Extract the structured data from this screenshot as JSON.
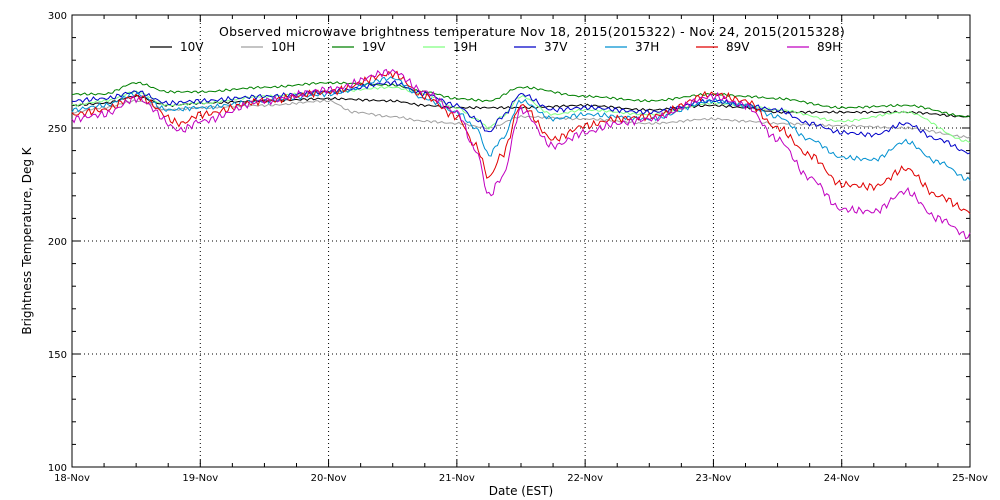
{
  "chart_data": {
    "type": "line",
    "title": "Observed microwave brightness temperature Nov 18, 2015(2015322) - Nov 24, 2015(2015328)",
    "xlabel": "Date (EST)",
    "ylabel": "Brightness Temperature, Deg K",
    "xlim": [
      0,
      7
    ],
    "ylim": [
      100,
      300
    ],
    "x_ticks": [
      {
        "x": 0,
        "label": "18-Nov"
      },
      {
        "x": 1,
        "label": "19-Nov"
      },
      {
        "x": 2,
        "label": "20-Nov"
      },
      {
        "x": 3,
        "label": "21-Nov"
      },
      {
        "x": 4,
        "label": "22-Nov"
      },
      {
        "x": 5,
        "label": "23-Nov"
      },
      {
        "x": 6,
        "label": "24-Nov"
      },
      {
        "x": 7,
        "label": "25-Nov"
      }
    ],
    "y_ticks": [
      100,
      150,
      200,
      250,
      300
    ],
    "grid": true,
    "grid_style": "dotted",
    "legend_position": "top",
    "series": [
      {
        "name": "10V",
        "color": "#000000",
        "x": [
          0,
          0.25,
          0.5,
          0.75,
          1,
          1.5,
          2,
          2.5,
          2.75,
          3,
          3.5,
          4,
          4.5,
          5,
          5.25,
          5.5,
          6,
          6.5,
          7
        ],
        "y": [
          260,
          261,
          264,
          260,
          261,
          262,
          263,
          262,
          260,
          259,
          259,
          260,
          258,
          260,
          259,
          257,
          257,
          257,
          255
        ]
      },
      {
        "name": "10H",
        "color": "#a0a0a0",
        "x": [
          0,
          0.25,
          0.5,
          0.75,
          1,
          1.5,
          2,
          2.2,
          2.5,
          2.75,
          3,
          3.25,
          3.5,
          4,
          4.5,
          5,
          5.25,
          5.5,
          6,
          6.5,
          7
        ],
        "y": [
          257,
          259,
          262,
          258,
          259,
          260,
          262,
          257,
          255,
          253,
          252,
          250,
          255,
          254,
          252,
          254,
          253,
          252,
          251,
          250,
          246
        ]
      },
      {
        "name": "19V",
        "color": "#008000",
        "x": [
          0,
          0.25,
          0.5,
          0.75,
          1,
          1.5,
          2,
          2.5,
          2.75,
          3,
          3.25,
          3.5,
          4,
          4.5,
          5,
          5.25,
          5.5,
          6,
          6.5,
          7
        ],
        "y": [
          265,
          265,
          270,
          266,
          266,
          268,
          270,
          269,
          266,
          263,
          262,
          268,
          264,
          262,
          265,
          264,
          263,
          259,
          260,
          255
        ]
      },
      {
        "name": "19H",
        "color": "#80ff80",
        "x": [
          0,
          0.25,
          0.5,
          0.75,
          1,
          1.5,
          2,
          2.5,
          2.75,
          3,
          3.15,
          3.25,
          3.35,
          3.5,
          3.75,
          4,
          4.5,
          5,
          5.25,
          5.5,
          6,
          6.5,
          7
        ],
        "y": [
          260,
          262,
          266,
          260,
          261,
          264,
          266,
          268,
          265,
          259,
          254,
          250,
          255,
          264,
          256,
          258,
          256,
          261,
          260,
          258,
          253,
          257,
          244
        ]
      },
      {
        "name": "37V",
        "color": "#0000c8",
        "x": [
          0,
          0.25,
          0.5,
          0.75,
          1,
          1.5,
          2,
          2.5,
          2.75,
          3,
          3.15,
          3.25,
          3.35,
          3.5,
          3.75,
          4,
          4.5,
          5,
          5.25,
          5.5,
          5.75,
          6,
          6.25,
          6.5,
          6.75,
          7
        ],
        "y": [
          262,
          263,
          266,
          261,
          262,
          264,
          266,
          270,
          265,
          260,
          254,
          248,
          255,
          265,
          258,
          259,
          257,
          262,
          260,
          258,
          252,
          248,
          247,
          252,
          245,
          239
        ]
      },
      {
        "name": "37H",
        "color": "#0090d0",
        "x": [
          0,
          0.25,
          0.5,
          0.75,
          1,
          1.5,
          2,
          2.5,
          2.75,
          3,
          3.15,
          3.25,
          3.35,
          3.5,
          3.75,
          4,
          4.5,
          5,
          5.25,
          5.5,
          5.75,
          6,
          6.25,
          6.5,
          6.75,
          7
        ],
        "y": [
          258,
          260,
          265,
          258,
          259,
          262,
          265,
          272,
          263,
          257,
          250,
          238,
          245,
          262,
          254,
          256,
          254,
          262,
          260,
          255,
          245,
          237,
          236,
          244,
          235,
          227
        ]
      },
      {
        "name": "89V",
        "color": "#e00000",
        "x": [
          0,
          0.25,
          0.5,
          0.85,
          1,
          1.5,
          2,
          2.5,
          2.75,
          3,
          3.15,
          3.25,
          3.35,
          3.5,
          3.75,
          4,
          4.25,
          4.5,
          5,
          5.25,
          5.5,
          5.75,
          6,
          6.25,
          6.5,
          6.75,
          7
        ],
        "y": [
          256,
          258,
          264,
          252,
          256,
          262,
          266,
          274,
          264,
          255,
          242,
          228,
          238,
          260,
          245,
          251,
          254,
          255,
          265,
          262,
          250,
          238,
          225,
          224,
          232,
          220,
          213
        ]
      },
      {
        "name": "89H",
        "color": "#c000c0",
        "x": [
          0,
          0.25,
          0.5,
          0.85,
          1,
          1.5,
          2,
          2.5,
          2.75,
          3,
          3.15,
          3.25,
          3.35,
          3.5,
          3.75,
          4,
          4.25,
          4.5,
          5,
          5.25,
          5.5,
          5.75,
          6,
          6.25,
          6.5,
          6.75,
          7
        ],
        "y": [
          254,
          256,
          263,
          249,
          253,
          262,
          267,
          275,
          266,
          257,
          240,
          220,
          228,
          258,
          242,
          248,
          252,
          254,
          264,
          260,
          245,
          228,
          214,
          213,
          222,
          210,
          202
        ]
      }
    ]
  }
}
